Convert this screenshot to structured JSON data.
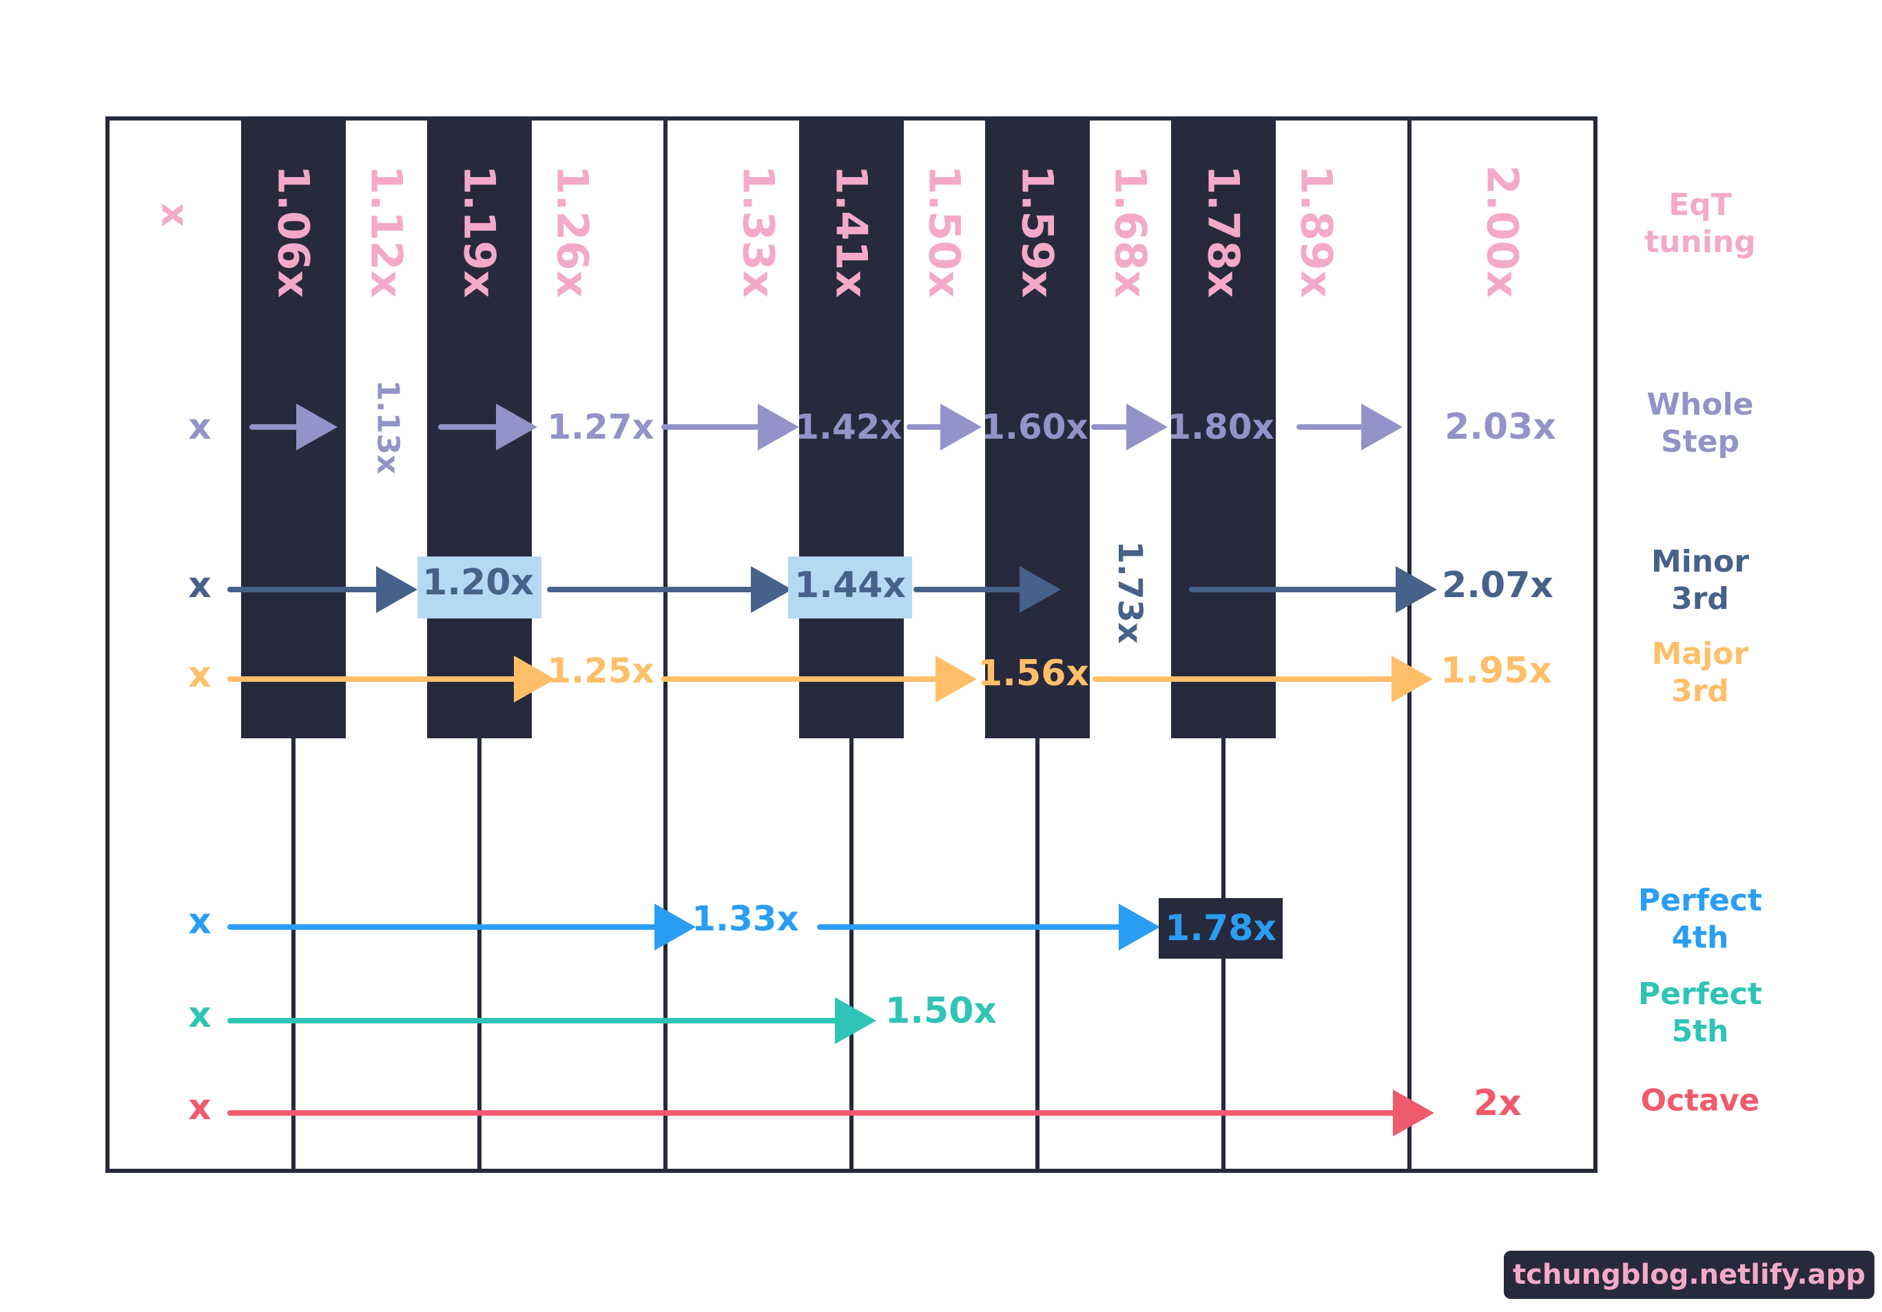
{
  "colors": {
    "outline": "#272a3c",
    "black_key": "#272a3c",
    "eqt": "#f4a9c9",
    "whole_step": "#9393c9",
    "minor_third": "#46618a",
    "minor_highlight": "#b3daf2",
    "major_third": "#ffbf69",
    "perfect_fourth": "#2a9df4",
    "perfect_fifth": "#2ec4b6",
    "octave": "#ef5b6c"
  },
  "keyboard": {
    "white_key_count": 8,
    "black_key_positions": [
      1,
      2,
      4,
      5,
      6
    ]
  },
  "rows": {
    "eqt": {
      "label": "EqT\ntuning",
      "start": "x",
      "values": [
        "1.06x",
        "1.12x",
        "1.19x",
        "1.26x",
        "1.33x",
        "1.41x",
        "1.50x",
        "1.59x",
        "1.68x",
        "1.78x",
        "1.89x",
        "2.00x"
      ]
    },
    "whole_step": {
      "label": "Whole\nStep",
      "start": "x",
      "values": [
        "1.13x",
        "1.27x",
        "1.42x",
        "1.60x",
        "1.80x",
        "2.03x"
      ]
    },
    "minor_third": {
      "label": "Minor\n3rd",
      "start": "x",
      "values": [
        "1.20x",
        "1.44x",
        "1.73x",
        "2.07x"
      ]
    },
    "major_third": {
      "label": "Major\n3rd",
      "start": "x",
      "values": [
        "1.25x",
        "1.56x",
        "1.95x"
      ]
    },
    "perfect_fourth": {
      "label": "Perfect\n4th",
      "start": "x",
      "values": [
        "1.33x",
        "1.78x"
      ]
    },
    "perfect_fifth": {
      "label": "Perfect\n5th",
      "start": "x",
      "values": [
        "1.50x"
      ]
    },
    "octave": {
      "label": "Octave",
      "start": "x",
      "values": [
        "2x"
      ]
    }
  },
  "credit": "tchungblog.netlify.app"
}
